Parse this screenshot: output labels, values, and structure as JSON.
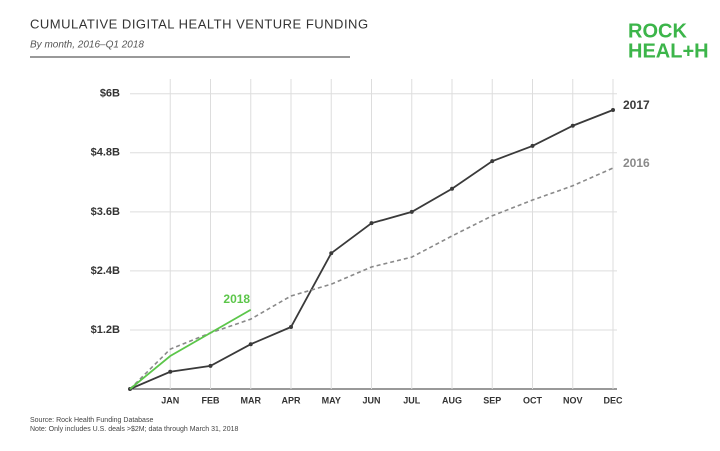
{
  "chart_data": {
    "type": "line",
    "title": "CUMULATIVE DIGITAL HEALTH VENTURE FUNDING",
    "subtitle": "By month, 2016–Q1 2018",
    "source": "Source: Rock Health Funding Database",
    "note": "Note: Only includes U.S. deals >$2M; data through March 31, 2018",
    "logo": [
      "ROCK",
      "HEAL+H"
    ],
    "logo_color": "#3cb54a",
    "categories": [
      null,
      "JAN",
      "FEB",
      "MAR",
      "APR",
      "MAY",
      "JUN",
      "JUL",
      "AUG",
      "SEP",
      "OCT",
      "NOV",
      "DEC"
    ],
    "series": [
      {
        "name": "2017",
        "color": "#3a3a3a",
        "dashed": false,
        "markers": true,
        "values": [
          0,
          0.35,
          0.47,
          0.91,
          1.26,
          2.76,
          3.37,
          3.6,
          4.07,
          4.63,
          4.94,
          5.35,
          5.67
        ]
      },
      {
        "name": "2016",
        "color": "#8a8a8a",
        "dashed": true,
        "markers": false,
        "values": [
          0,
          0.81,
          1.14,
          1.42,
          1.89,
          2.13,
          2.48,
          2.68,
          3.11,
          3.52,
          3.84,
          4.13,
          4.49
        ]
      },
      {
        "name": "2018",
        "color": "#5cc64a",
        "dashed": false,
        "markers": false,
        "values": [
          0,
          0.67,
          1.14,
          1.61,
          null,
          null,
          null,
          null,
          null,
          null,
          null,
          null,
          null
        ]
      }
    ],
    "ylim": [
      0,
      6.3
    ],
    "yticks": [
      {
        "value": 1.2,
        "label": "$1.2B"
      },
      {
        "value": 2.4,
        "label": "$2.4B"
      },
      {
        "value": 3.6,
        "label": "$3.6B"
      },
      {
        "value": 4.8,
        "label": "$4.8B"
      },
      {
        "value": 6,
        "label": "$6B"
      }
    ],
    "grid": true
  }
}
